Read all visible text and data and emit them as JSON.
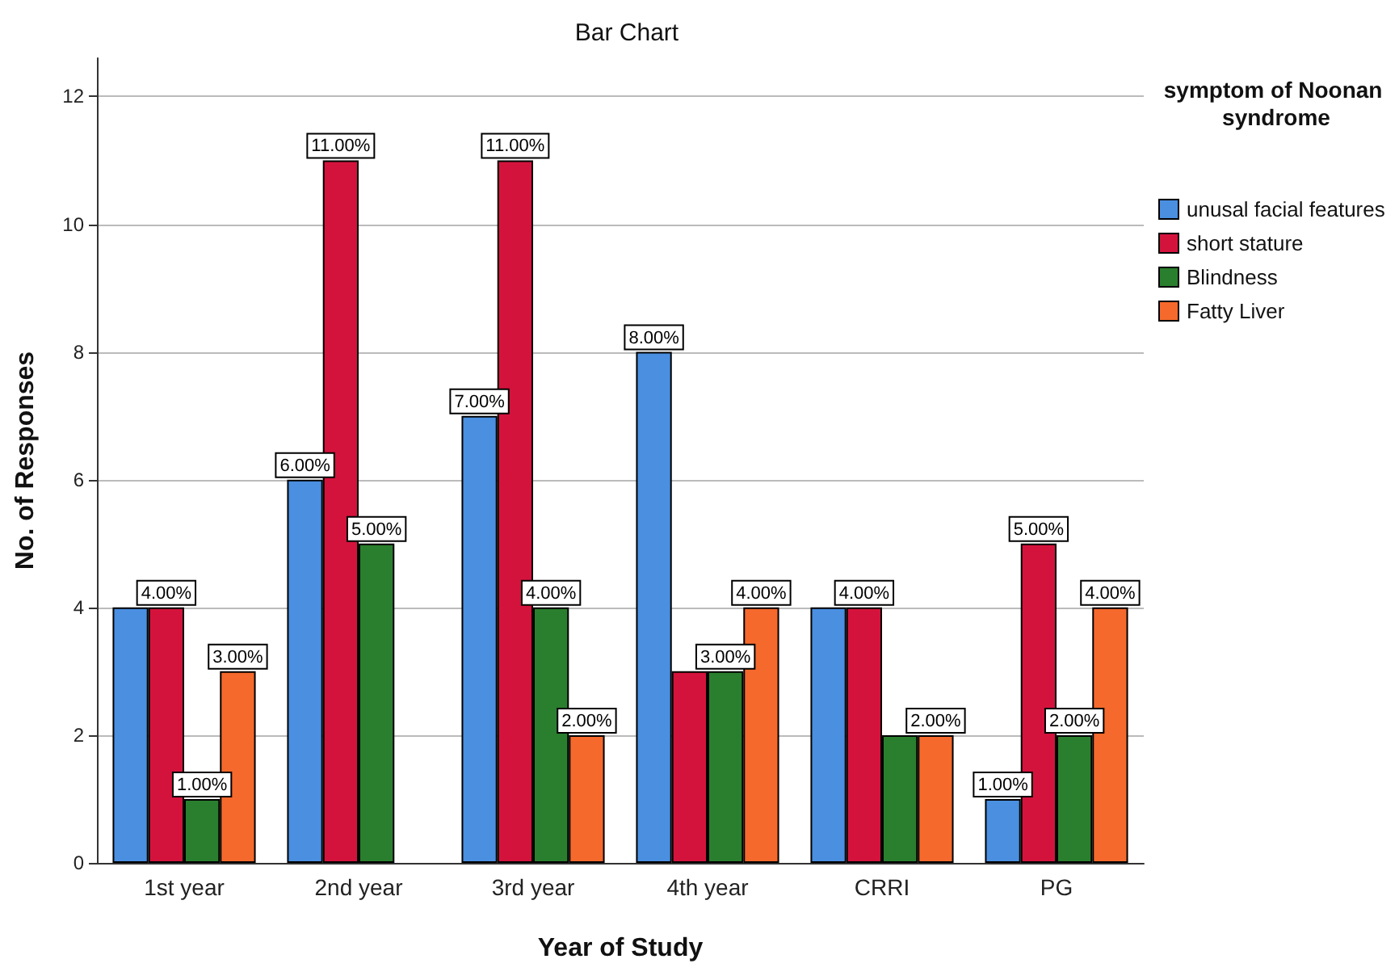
{
  "chart_data": {
    "type": "bar",
    "title": "Bar Chart",
    "xlabel": "Year of Study",
    "ylabel": "No. of Responses",
    "legend_title": "symptom of Noonan syndrome",
    "categories": [
      "1st year",
      "2nd year",
      "3rd year",
      "4th year",
      "CRRI",
      "PG"
    ],
    "series": [
      {
        "name": "unusal facial features",
        "color": "#4a8fe0",
        "values": [
          4,
          6,
          7,
          8,
          4,
          1
        ],
        "value_labels": [
          null,
          "6.00%",
          "7.00%",
          "8.00%",
          null,
          "1.00%"
        ]
      },
      {
        "name": "short stature",
        "color": "#d4133d",
        "values": [
          4,
          11,
          11,
          3,
          4,
          5
        ],
        "value_labels": [
          "4.00%",
          "11.00%",
          "11.00%",
          null,
          "4.00%",
          "5.00%"
        ]
      },
      {
        "name": "Blindness",
        "color": "#2a7f2e",
        "values": [
          1,
          5,
          4,
          3,
          2,
          2
        ],
        "value_labels": [
          "1.00%",
          "5.00%",
          "4.00%",
          "3.00%",
          null,
          "2.00%"
        ]
      },
      {
        "name": "Fatty Liver",
        "color": "#f5692c",
        "values": [
          3,
          null,
          2,
          4,
          2,
          4
        ],
        "value_labels": [
          "3.00%",
          null,
          "2.00%",
          "4.00%",
          "2.00%",
          "4.00%"
        ]
      }
    ],
    "ylim": [
      0,
      12.6
    ],
    "yticks": [
      0,
      2,
      4,
      6,
      8,
      10,
      12
    ],
    "grid": "y",
    "legend": "top right"
  }
}
